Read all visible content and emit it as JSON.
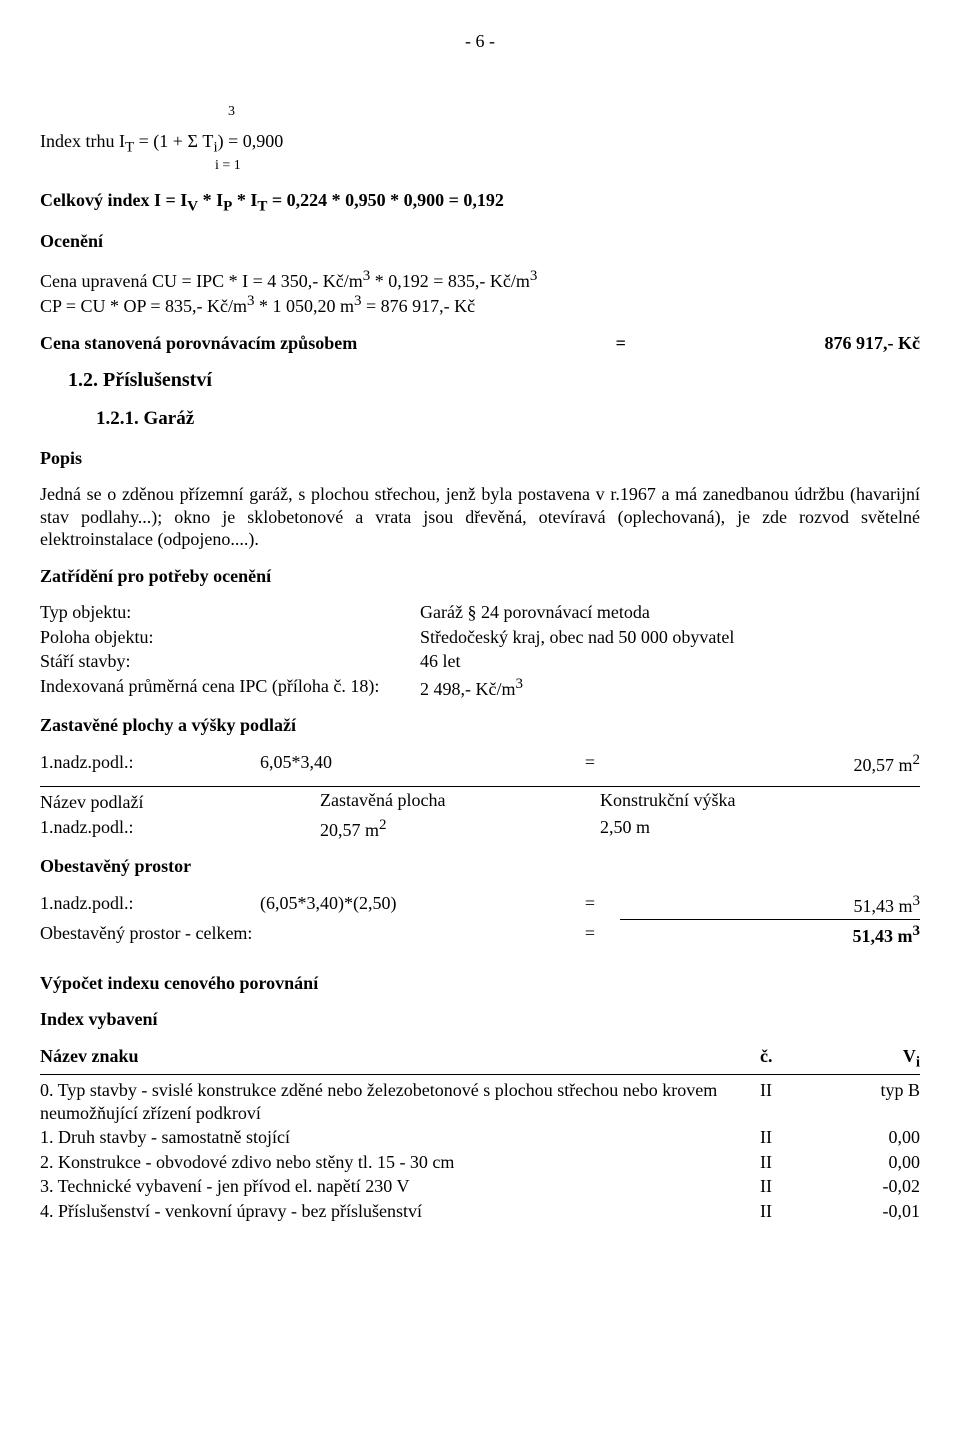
{
  "page_number": "- 6 -",
  "formula_sup": "3",
  "formula_main": "Index trhu I<sub>T</sub> = (1 + Σ T<sub>i</sub>) = 0,900",
  "formula_sub": "i = 1",
  "celkovy_index": "Celkový index I = I<sub>V</sub> * I<sub>P</sub> * I<sub>T</sub> = 0,224 * 0,950 * 0,900 = 0,192",
  "oceneni_title": "Ocenění",
  "oceneni_line1": "Cena upravená CU = IPC * I = 4 350,- Kč/m<sup>3</sup> * 0,192 = 835,- Kč/m<sup>3</sup>",
  "oceneni_line2": "CP = CU * OP = 835,- Kč/m<sup>3</sup> * 1 050,20 m<sup>3</sup> = 876 917,- Kč",
  "cena_stanovena": {
    "label": "Cena stanovená porovnávacím způsobem",
    "eq": "=",
    "val": "876 917,- Kč"
  },
  "sec12": "1.2. Příslušenství",
  "sec121": "1.2.1. Garáž",
  "popis_title": "Popis",
  "popis_body": "Jedná se o zděnou přízemní garáž, s plochou střechou, jenž byla postavena v r.1967 a má zanedbanou údržbu (havarijní stav podlahy...); okno je sklobetonové a vrata jsou dřevěná, otevíravá (oplechovaná), je zde rozvod světelné elektroinstalace (odpojeno....).",
  "zatrideni_title": "Zatřídění pro potřeby ocenění",
  "zatrideni_rows": [
    {
      "k": "Typ objektu:",
      "v": "Garáž § 24 porovnávací metoda"
    },
    {
      "k": "Poloha objektu:",
      "v": "Středočeský kraj, obec nad 50 000 obyvatel"
    },
    {
      "k": "Stáří stavby:",
      "v": "46 let"
    },
    {
      "k": "Indexovaná průměrná cena IPC (příloha č. 18):",
      "v": "2 498,- Kč/m<sup>3</sup>"
    }
  ],
  "zast_title": "Zastavěné plochy a výšky podlaží",
  "zast_row": {
    "a": "1.nadz.podl.:",
    "b": "6,05*3,40",
    "c": "=",
    "d": "20,57 m<sup>2</sup>"
  },
  "podlazi_header": {
    "a": "Název podlaží",
    "b": "Zastavěná plocha",
    "c": "Konstrukční výška"
  },
  "podlazi_row": {
    "a": "1.nadz.podl.:",
    "b": "20,57 m<sup>2</sup>",
    "c": "2,50 m"
  },
  "obest_title": "Obestavěný prostor",
  "obest_row": {
    "a": "1.nadz.podl.:",
    "b": "(6,05*3,40)*(2,50)",
    "c": "=",
    "d": "51,43 m<sup>3</sup>"
  },
  "obest_total": {
    "a": "Obestavěný prostor - celkem:",
    "b": "",
    "c": "=",
    "d": "51,43 m<sup>3</sup>"
  },
  "vypocet_title": "Výpočet indexu cenového porovnání",
  "index_vyb_title": "Index vybavení",
  "index_header": {
    "a": "Název znaku",
    "b": "č.",
    "c": "V<sub>i</sub>"
  },
  "index_rows": [
    {
      "a": "0. Typ stavby - svislé konstrukce zděné nebo železobetonové s plochou střechou nebo krovem neumožňující zřízení podkroví",
      "b": "II",
      "c": "typ B"
    },
    {
      "a": "1. Druh stavby - samostatně stojící",
      "b": "II",
      "c": "0,00"
    },
    {
      "a": "2. Konstrukce - obvodové zdivo nebo stěny tl. 15 - 30 cm",
      "b": "II",
      "c": "0,00"
    },
    {
      "a": "3. Technické vybavení - jen přívod el. napětí 230 V",
      "b": "II",
      "c": "-0,02"
    },
    {
      "a": "4. Příslušenství - venkovní úpravy - bez příslušenství",
      "b": "II",
      "c": "-0,01"
    }
  ]
}
